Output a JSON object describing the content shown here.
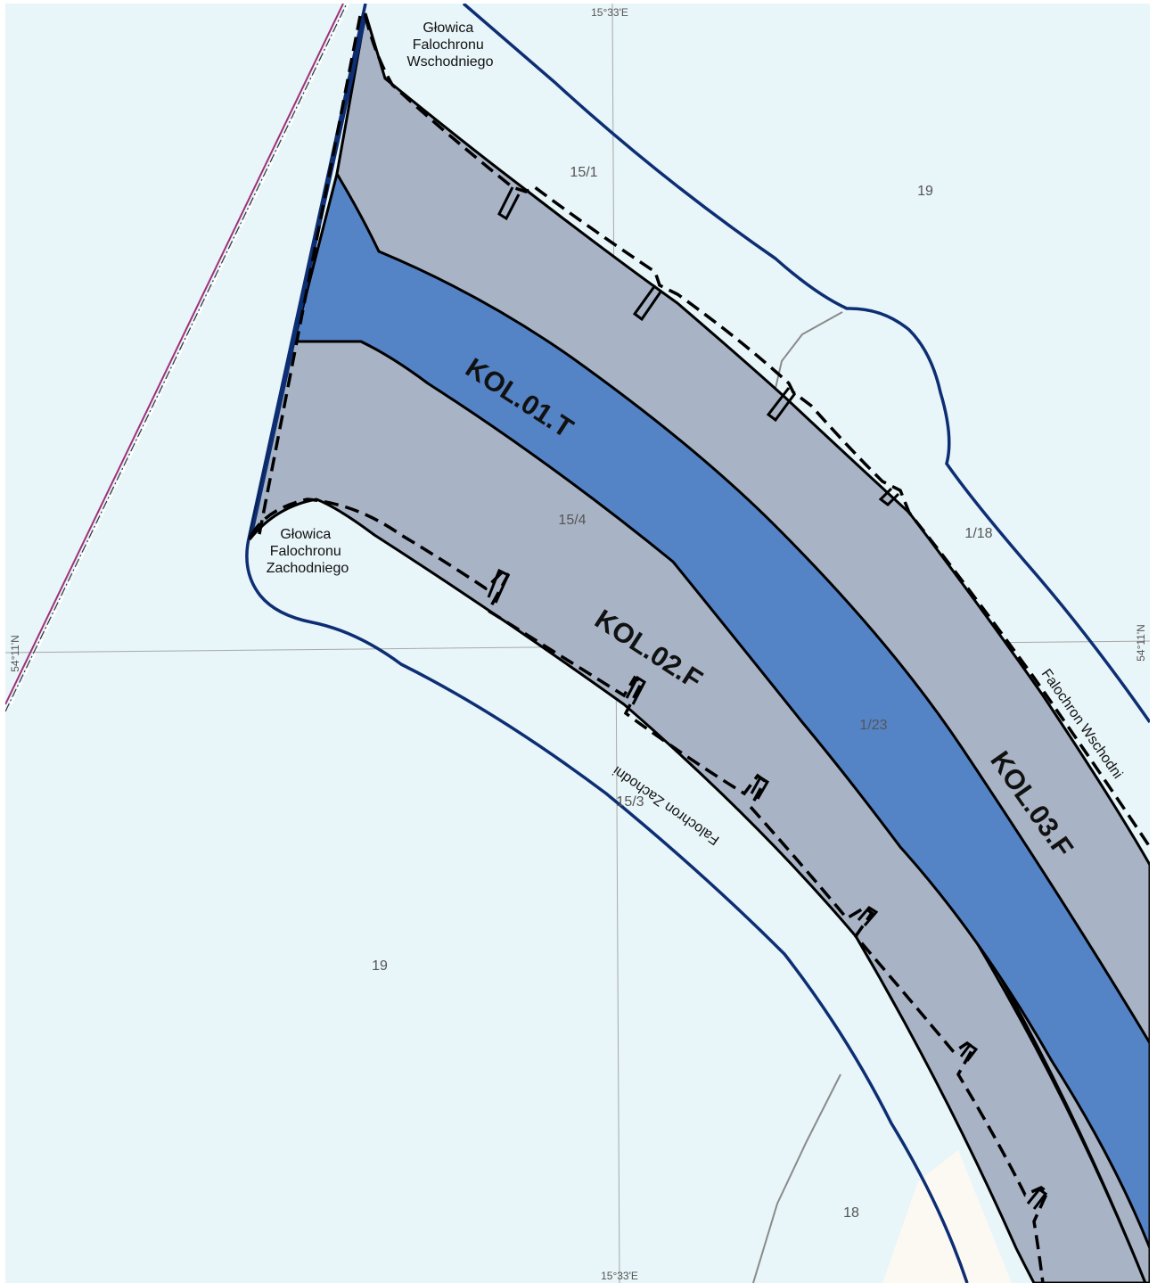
{
  "map": {
    "colors": {
      "water": "#e8f5f9",
      "land": "#fcf9f3",
      "fairway": "#5584c6",
      "zone": "#a8b4c5",
      "boundary": "#0d2e73",
      "grid": "#a9a9a9",
      "plot_line": "#8a8a8a",
      "dashdot": "#a0307a",
      "outline": "#000000"
    },
    "coords": {
      "lon_top": "15°33'E",
      "lon_bottom": "15°33'E",
      "lat_left": "54°11'N",
      "lat_right": "54°11'N"
    },
    "plots": {
      "p15_1": "15/1",
      "p19_top": "19",
      "p15_4": "15/4",
      "p1_18": "1/18",
      "p1_23": "1/23",
      "p15_3": "15/3",
      "p19_bottom": "19",
      "p18": "18"
    },
    "names": {
      "head_east": [
        "Głowica",
        "Falochronu",
        "Wschodniego"
      ],
      "head_west": [
        "Głowica",
        "Falochronu",
        "Zachodniego"
      ],
      "breakwater_east": "Falochron Wschodni",
      "breakwater_west": "Falochron Zachodni"
    },
    "zones": {
      "kol01": "KOL.01.T",
      "kol02": "KOL.02.F",
      "kol03": "KOL.03.F"
    }
  }
}
